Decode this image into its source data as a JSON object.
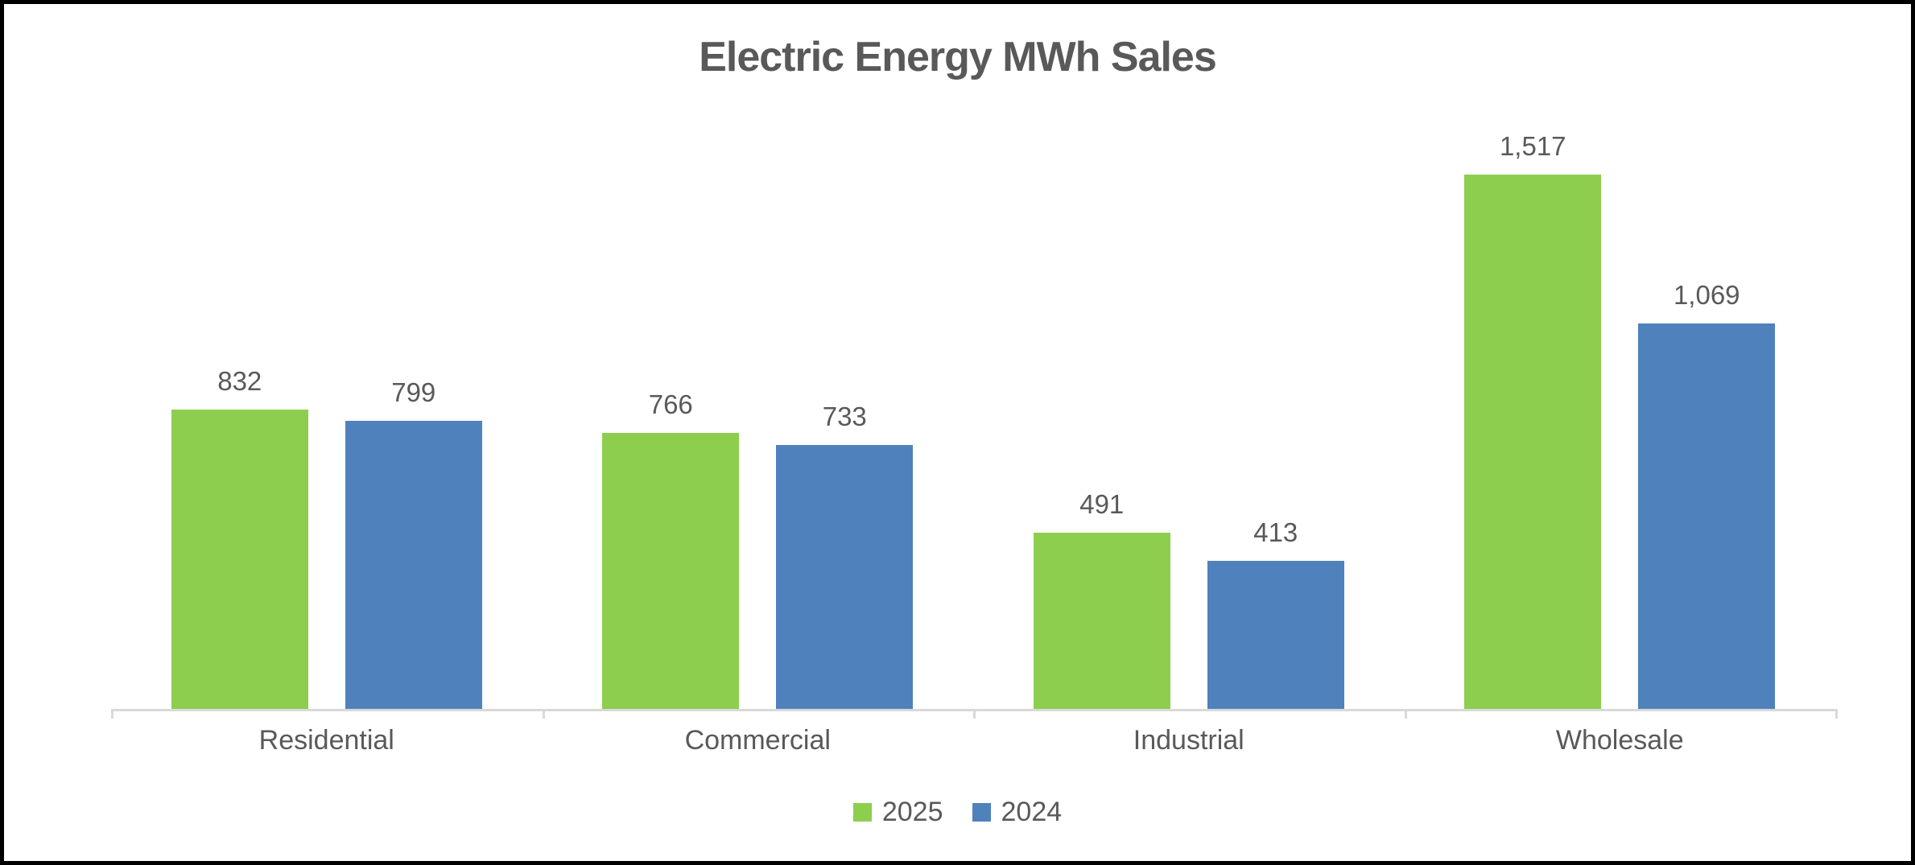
{
  "frame": {
    "background": "#FFFFFF",
    "border_color": "#000000"
  },
  "chart_data": {
    "type": "bar",
    "title": "Electric Energy MWh Sales",
    "categories": [
      "Residential",
      "Commercial",
      "Industrial",
      "Wholesale"
    ],
    "series": [
      {
        "name": "2025",
        "color": "#8DCE4E",
        "values": [
          832,
          766,
          491,
          1517
        ]
      },
      {
        "name": "2024",
        "color": "#4F81BD",
        "values": [
          799,
          733,
          413,
          1069
        ]
      }
    ],
    "data_labels": [
      "832",
      "799",
      "766",
      "733",
      "491",
      "413",
      "1,517",
      "1,069"
    ],
    "label_format": "thousands-comma",
    "xlabel": "",
    "ylabel": "",
    "ylim": [
      0,
      1600
    ],
    "grid": false,
    "y_axis_visible": false,
    "legend_position": "bottom",
    "axis_line_color": "#D9D9D9",
    "text_color": "#595959",
    "title_color": "#595959"
  }
}
